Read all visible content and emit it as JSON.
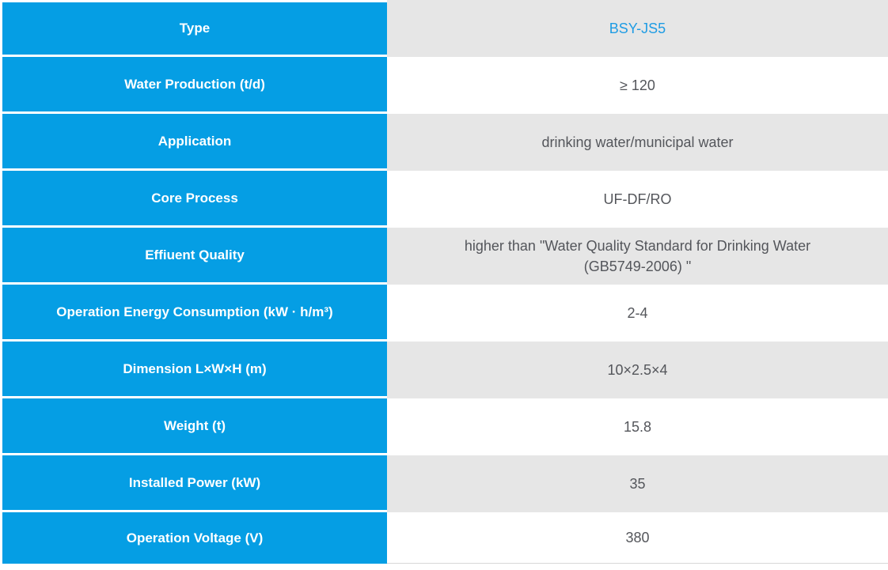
{
  "table": {
    "name": "product-specification-table",
    "rows": [
      {
        "label": "Type",
        "value": "BSY-JS5"
      },
      {
        "label": "Water Production (t/d)",
        "value": "≥ 120"
      },
      {
        "label": "Application",
        "value": "drinking water/municipal water"
      },
      {
        "label": "Core Process",
        "value": "UF-DF/RO"
      },
      {
        "label": "Effiuent Quality",
        "value": "higher than \"Water Quality Standard for Drinking Water",
        "value2": "(GB5749-2006) \""
      },
      {
        "label": "Operation Energy Consumption (kW · h/m³)",
        "value": "2-4"
      },
      {
        "label": "Dimension L×W×H (m)",
        "value": "10×2.5×4"
      },
      {
        "label": "Weight (t)",
        "value": "15.8"
      },
      {
        "label": "Installed Power (kW)",
        "value": "35"
      },
      {
        "label": "Operation Voltage (V)",
        "value": "380"
      }
    ]
  },
  "colors": {
    "label_column_blue": "#059ee4",
    "value_row_gray": "#e6e6e6",
    "value_row_white": "#ffffff",
    "model_text_blue": "#1e9ce4",
    "value_text_gray": "#54565b",
    "label_text_white": "#ffffff",
    "bottom_hairline": "#d8d8d8"
  }
}
